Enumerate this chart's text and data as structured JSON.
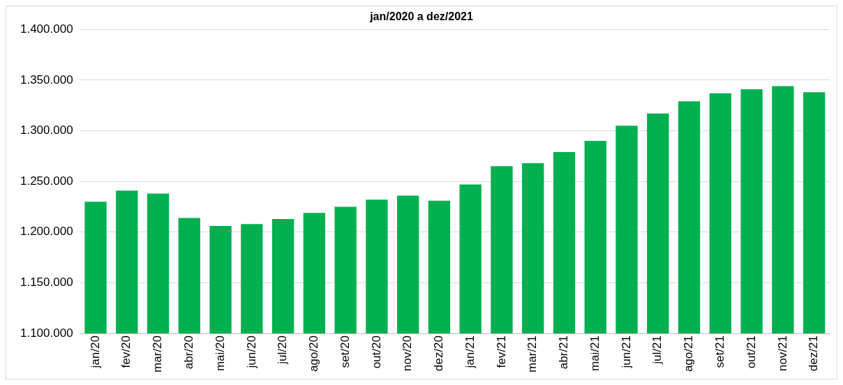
{
  "chart_data": {
    "type": "bar",
    "title": "jan/2020 a dez/2021",
    "categories": [
      "jan/20",
      "fev/20",
      "mar/20",
      "abr/20",
      "mai/20",
      "jun/20",
      "jul/20",
      "ago/20",
      "set/20",
      "out/20",
      "nov/20",
      "dez/20",
      "jan/21",
      "fev/21",
      "mar/21",
      "abr/21",
      "mai/21",
      "jun/21",
      "jul/21",
      "ago/21",
      "set/21",
      "out/21",
      "nov/21",
      "dez/21"
    ],
    "values": [
      1230000,
      1241000,
      1238000,
      1214000,
      1206000,
      1208000,
      1213000,
      1219000,
      1225000,
      1232000,
      1236000,
      1231000,
      1247000,
      1265000,
      1268000,
      1279000,
      1290000,
      1305000,
      1317000,
      1329000,
      1337000,
      1341000,
      1344000,
      1338000
    ],
    "color": "#00b050",
    "ylim": [
      1100000,
      1400000
    ],
    "yticks": [
      {
        "value": 1100000,
        "label": "1.100.000"
      },
      {
        "value": 1150000,
        "label": "1.150.000"
      },
      {
        "value": 1200000,
        "label": "1.200.000"
      },
      {
        "value": 1250000,
        "label": "1.250.000"
      },
      {
        "value": 1300000,
        "label": "1.300.000"
      },
      {
        "value": 1350000,
        "label": "1.350.000"
      },
      {
        "value": 1400000,
        "label": "1.400.000"
      }
    ],
    "grid": "y",
    "legend": false
  }
}
